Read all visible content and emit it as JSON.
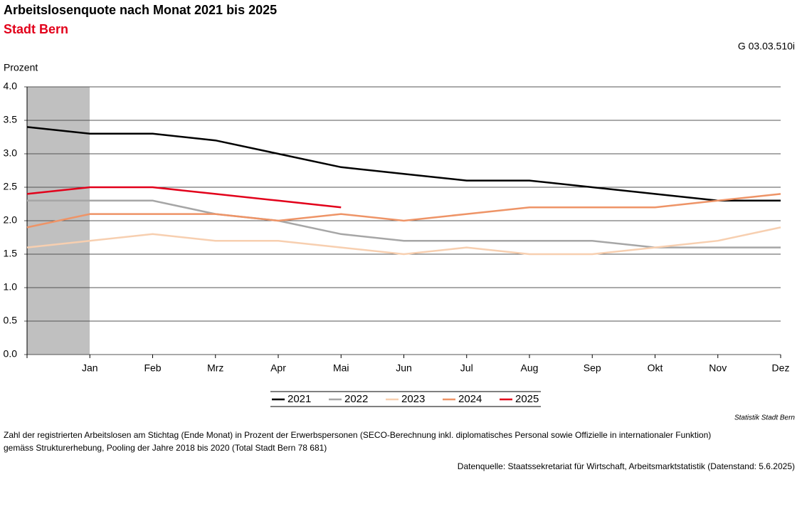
{
  "chart_data": {
    "type": "line",
    "title": "Arbeitslosenquote nach Monat 2021 bis 2025",
    "subtitle": "Stadt Bern",
    "code": "G 03.03.510i",
    "y_label": "Prozent",
    "source_label": "Statistik Stadt Bern",
    "note": [
      "Zahl der registrierten Arbeitslosen am Stichtag (Ende Monat) in Prozent der Erwerbspersonen (SECO-Berechnung inkl. diplomatisches Personal sowie Offizielle in internationaler Funktion)",
      "gemäss Strukturerhebung, Pooling der Jahre 2018 bis 2020 (Total Stadt Bern 78 681)"
    ],
    "data_source": "Datenquelle: Staatssekretariat für Wirtschaft, Arbeitsmarktstatistik (Datenstand: 5.6.2025)",
    "categories": [
      null,
      "Jan",
      "Feb",
      "Mrz",
      "Apr",
      "Mai",
      "Jun",
      "Jul",
      "Aug",
      "Sep",
      "Okt",
      "Nov",
      "Dez"
    ],
    "series": [
      {
        "name": "2021",
        "color": "#000000",
        "values": [
          3.4,
          3.3,
          3.3,
          3.2,
          3.0,
          2.8,
          2.7,
          2.6,
          2.6,
          2.5,
          2.4,
          2.3,
          2.3
        ]
      },
      {
        "name": "2022",
        "color": "#a6a6a6",
        "values": [
          2.3,
          2.3,
          2.3,
          2.1,
          2.0,
          1.8,
          1.7,
          1.7,
          1.7,
          1.7,
          1.6,
          1.6,
          1.6
        ]
      },
      {
        "name": "2023",
        "color": "#f7cfb0",
        "values": [
          1.6,
          1.7,
          1.8,
          1.7,
          1.7,
          1.6,
          1.5,
          1.6,
          1.5,
          1.5,
          1.6,
          1.7,
          1.9
        ]
      },
      {
        "name": "2024",
        "color": "#ee9467",
        "values": [
          1.9,
          2.1,
          2.1,
          2.1,
          2.0,
          2.1,
          2.0,
          2.1,
          2.2,
          2.2,
          2.2,
          2.3,
          2.4
        ]
      },
      {
        "name": "2025",
        "color": "#e2001a",
        "values": [
          2.4,
          2.5,
          2.5,
          2.4,
          2.3,
          2.2,
          null,
          null,
          null,
          null,
          null,
          null,
          null
        ]
      }
    ],
    "ylim": [
      0,
      4
    ],
    "yticks": [
      {
        "value": 0,
        "label": "0.0"
      },
      0.5,
      {
        "value": 1,
        "label": "1.0"
      },
      1.5,
      {
        "value": 2,
        "label": "2.0"
      },
      2.5,
      {
        "value": 3,
        "label": "3.0"
      },
      3.5,
      {
        "value": 4,
        "label": "4.0"
      }
    ],
    "grid": true
  }
}
